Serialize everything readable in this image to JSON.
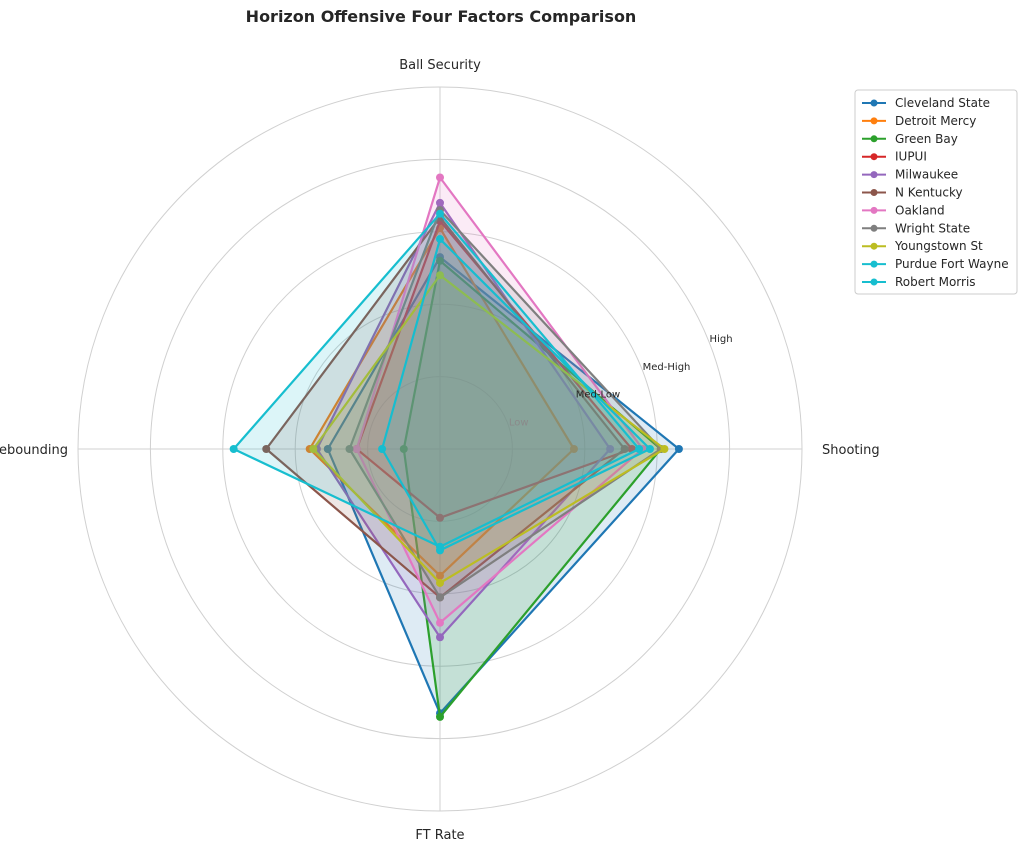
{
  "chart_data": {
    "type": "radar",
    "title": "Horizon Offensive Four Factors Comparison",
    "axes": [
      "Shooting",
      "Ball Security",
      "Off Rebounding",
      "FT Rate"
    ],
    "rlim": [
      0,
      5
    ],
    "rings": [
      1,
      2,
      3,
      4,
      5
    ],
    "ring_labels": [
      "Low",
      "Med-Low",
      "Med-High",
      "High"
    ],
    "ring_label_values": [
      1,
      2,
      3,
      4
    ],
    "grid": true,
    "legend_position": "upper-right",
    "series": [
      {
        "name": "Cleveland State",
        "color": "#1f77b4",
        "values": [
          3.3,
          2.65,
          1.55,
          3.65
        ]
      },
      {
        "name": "Detroit Mercy",
        "color": "#ff7f0e",
        "values": [
          1.85,
          3.05,
          1.8,
          1.75
        ]
      },
      {
        "name": "Green Bay",
        "color": "#2ca02c",
        "values": [
          3.05,
          2.6,
          0.5,
          3.7
        ]
      },
      {
        "name": "IUPUI",
        "color": "#d62728",
        "values": [
          2.65,
          3.15,
          1.15,
          0.95
        ]
      },
      {
        "name": "Milwaukee",
        "color": "#9467bd",
        "values": [
          2.35,
          3.4,
          1.7,
          2.6
        ]
      },
      {
        "name": "N Kentucky",
        "color": "#8c564b",
        "values": [
          2.55,
          3.2,
          2.4,
          2.05
        ]
      },
      {
        "name": "Oakland",
        "color": "#e377c2",
        "values": [
          2.8,
          3.75,
          1.15,
          2.4
        ]
      },
      {
        "name": "Wright State",
        "color": "#7f7f7f",
        "values": [
          3.05,
          3.3,
          1.25,
          2.05
        ]
      },
      {
        "name": "Youngstown St",
        "color": "#bcbd22",
        "values": [
          3.1,
          2.4,
          1.75,
          1.85
        ]
      },
      {
        "name": "Purdue Fort Wayne",
        "color": "#17becf",
        "values": [
          2.9,
          2.9,
          0.8,
          1.4
        ]
      },
      {
        "name": "Robert Morris",
        "color": "#17becf",
        "values": [
          2.75,
          3.25,
          2.85,
          1.35
        ]
      }
    ]
  }
}
